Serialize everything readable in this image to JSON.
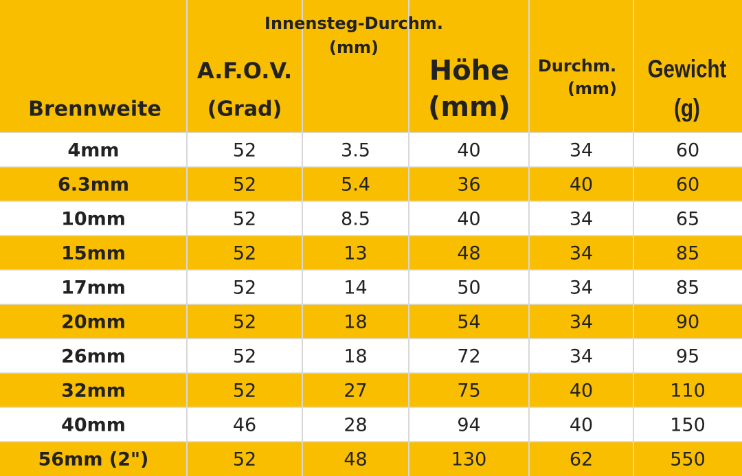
{
  "header": {
    "columns": [
      {
        "lines": [
          "Brennweite"
        ]
      },
      {
        "lines": [
          "A.F.O.V.",
          "(Grad)"
        ]
      },
      {
        "lines": [
          "Innensteg-Durchm.",
          "(mm)"
        ]
      },
      {
        "lines": [
          "Höhe",
          "(mm)"
        ]
      },
      {
        "lines": [
          "Durchm.",
          "(mm)"
        ]
      },
      {
        "lines": [
          "Gewicht",
          "(g)"
        ]
      }
    ]
  },
  "table": {
    "rows": [
      [
        "4mm",
        "52",
        "3.5",
        "40",
        "34",
        "60"
      ],
      [
        "6.3mm",
        "52",
        "5.4",
        "36",
        "40",
        "60"
      ],
      [
        "10mm",
        "52",
        "8.5",
        "40",
        "34",
        "65"
      ],
      [
        "15mm",
        "52",
        "13",
        "48",
        "34",
        "85"
      ],
      [
        "17mm",
        "52",
        "14",
        "50",
        "34",
        "85"
      ],
      [
        "20mm",
        "52",
        "18",
        "54",
        "34",
        "90"
      ],
      [
        "26mm",
        "52",
        "18",
        "72",
        "34",
        "95"
      ],
      [
        "32mm",
        "52",
        "27",
        "75",
        "40",
        "110"
      ],
      [
        "40mm",
        "46",
        "28",
        "94",
        "40",
        "150"
      ],
      [
        "56mm (2\")",
        "52",
        "48",
        "130",
        "62",
        "550"
      ]
    ]
  }
}
